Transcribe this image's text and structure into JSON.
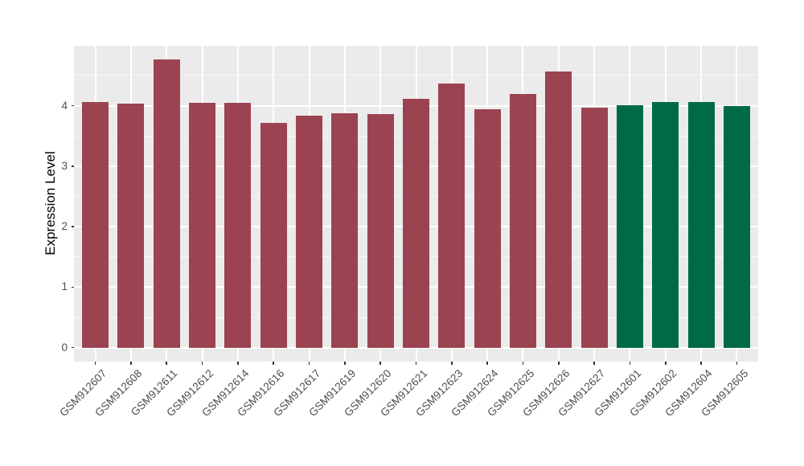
{
  "chart_data": {
    "type": "bar",
    "title": "",
    "xlabel": "",
    "ylabel": "Expression Level",
    "categories": [
      "GSM912607",
      "GSM912608",
      "GSM912611",
      "GSM912612",
      "GSM912614",
      "GSM912616",
      "GSM912617",
      "GSM912619",
      "GSM912620",
      "GSM912621",
      "GSM912623",
      "GSM912624",
      "GSM912625",
      "GSM912626",
      "GSM912627",
      "GSM912601",
      "GSM912602",
      "GSM912604",
      "GSM912605"
    ],
    "values": [
      4.06,
      4.03,
      4.76,
      4.05,
      4.05,
      3.72,
      3.84,
      3.87,
      3.86,
      4.12,
      4.37,
      3.94,
      4.19,
      4.56,
      3.97,
      4.01,
      4.06,
      4.06,
      3.99
    ],
    "bar_colors": [
      "#9C4351",
      "#9C4351",
      "#9C4351",
      "#9C4351",
      "#9C4351",
      "#9C4351",
      "#9C4351",
      "#9C4351",
      "#9C4351",
      "#9C4351",
      "#9C4351",
      "#9C4351",
      "#9C4351",
      "#9C4351",
      "#9C4351",
      "#006A48",
      "#006A48",
      "#006A48",
      "#006A48"
    ],
    "group_colors": {
      "red_group": "#9C4351",
      "green_group": "#006A48"
    },
    "yticks": [
      0,
      1,
      2,
      3,
      4
    ],
    "ytick_labels": [
      "0",
      "1",
      "2",
      "3",
      "4"
    ],
    "minor_yticks": [
      0.5,
      1.5,
      2.5,
      3.5,
      4.5
    ],
    "ylim": [
      -0.23,
      4.99
    ],
    "bar_width_frac": 0.74,
    "legend": "none",
    "grid": "major and minor horizontal white lines, major vertical white line per category",
    "panel_bg": "#EBEBEB",
    "grid_major_color": "#FFFFFF",
    "grid_minor_color": "rgba(255,255,255,0.65)",
    "tick_mark_color": "#333333",
    "axis_text_color": "#4d4d4d",
    "background": "#FFFFFF"
  }
}
